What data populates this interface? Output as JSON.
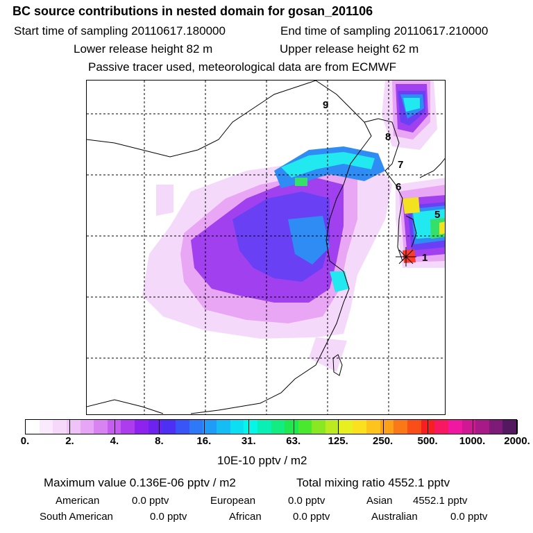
{
  "header": {
    "title": "BC  source contributions in nested domain for gosan_201106",
    "start_time": "Start time of sampling 20110617.180000",
    "end_time": "End time of sampling 20110617.210000",
    "lower_height": "Lower release height   82 m",
    "upper_height": "Upper release height   62 m",
    "tracer_note": "Passive tracer used, meteorological data are from ECMWF"
  },
  "map": {
    "point_labels": [
      "9",
      "8",
      "7",
      "6",
      "5",
      "1"
    ],
    "plume_colors": {
      "lightest": "#f5d9fb",
      "light": "#e9a6f5",
      "violet": "#a040ee",
      "blue_violet": "#6a40f5",
      "blue": "#2f8cf5",
      "cyan": "#22e8f0",
      "green": "#35e06a",
      "yellow": "#f2e21f",
      "red": "#ff3a2a"
    }
  },
  "colorbar": {
    "colors": [
      "#ffffff",
      "#fbeafd",
      "#f6d8fb",
      "#efc2f8",
      "#e6a6f5",
      "#d982f2",
      "#c55ef0",
      "#ae3cef",
      "#8e22ee",
      "#6e22f0",
      "#4e30f5",
      "#3a55f7",
      "#2d79f8",
      "#1f9bf8",
      "#16bdf5",
      "#0edef2",
      "#05f5e8",
      "#0af0b4",
      "#12ec80",
      "#1fe84e",
      "#4ae82e",
      "#8ae822",
      "#bbea20",
      "#e8ee20",
      "#fae01e",
      "#fcc41c",
      "#fca01a",
      "#fb7818",
      "#fa4e18",
      "#f81f20",
      "#f81862",
      "#f018a0",
      "#d01894",
      "#a81a88",
      "#7e1a78",
      "#541860"
    ],
    "tick_labels": [
      "0.",
      "2.",
      "4.",
      "8.",
      "16.",
      "31.",
      "63.",
      "125.",
      "250.",
      "500.",
      "1000.",
      "2000."
    ],
    "unit": "10E-10 pptv / m2"
  },
  "summary": {
    "max_label": "Maximum value  0.136E-06 pptv / m2",
    "total_label": "Total mixing ratio     4552.1 pptv",
    "american_label": "American",
    "american_value": "0.0 pptv",
    "european_label": "European",
    "european_value": "0.0 pptv",
    "asian_label": "Asian",
    "asian_value": "4552.1 pptv",
    "south_american_label": "South American",
    "south_american_value": "0.0 pptv",
    "african_label": "African",
    "african_value": "0.0 pptv",
    "australian_label": "Australian",
    "australian_value": "0.0 pptv"
  }
}
